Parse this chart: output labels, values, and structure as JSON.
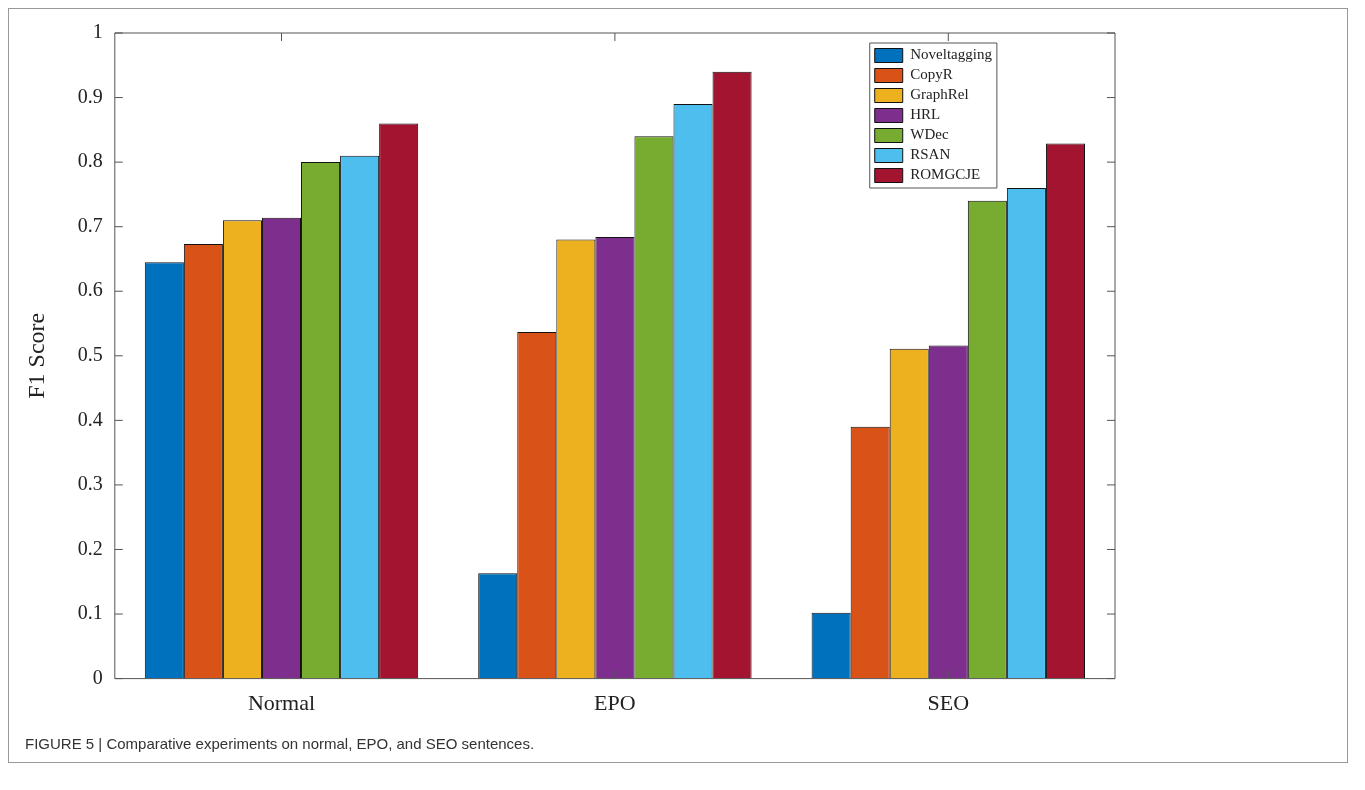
{
  "chart_data": {
    "type": "bar",
    "ylabel": "F1 Score",
    "categories": [
      "Normal",
      "EPO",
      "SEO"
    ],
    "series": [
      {
        "name": "Noveltagging",
        "color": "#0072bd",
        "values": [
          0.645,
          0.163,
          0.102
        ]
      },
      {
        "name": "CopyR",
        "color": "#d95319",
        "values": [
          0.673,
          0.537,
          0.39
        ]
      },
      {
        "name": "GraphRel",
        "color": "#edb120",
        "values": [
          0.71,
          0.68,
          0.511
        ]
      },
      {
        "name": "HRL",
        "color": "#7e2f8e",
        "values": [
          0.714,
          0.684,
          0.516
        ]
      },
      {
        "name": "WDec",
        "color": "#77ac30",
        "values": [
          0.8,
          0.84,
          0.74
        ]
      },
      {
        "name": "RSAN",
        "color": "#4dbeee",
        "values": [
          0.81,
          0.89,
          0.76
        ]
      },
      {
        "name": "ROMGCJE",
        "color": "#a2142f",
        "values": [
          0.86,
          0.94,
          0.829
        ]
      }
    ],
    "ylim": [
      0,
      1
    ],
    "yticks": [
      0,
      0.1,
      0.2,
      0.3,
      0.4,
      0.5,
      0.6,
      0.7,
      0.8,
      0.9,
      1
    ],
    "grid": false,
    "legend": "top right",
    "annotations": [
      "FIGURE 5 | Comparative experiments on normal, EPO, and SEO sentences."
    ]
  }
}
